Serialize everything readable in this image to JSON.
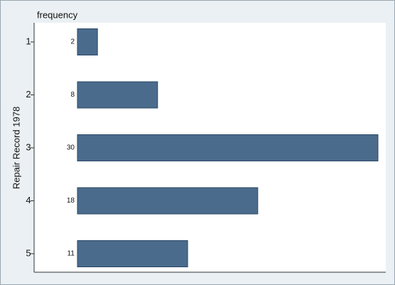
{
  "chart_data": {
    "type": "hbar",
    "title": "frequency",
    "y_label": "Repair Record 1978",
    "categories": [
      "1",
      "2",
      "3",
      "4",
      "5"
    ],
    "values": [
      2,
      8,
      30,
      18,
      11
    ],
    "color": "#4a6b8c",
    "xlim": [
      0,
      30
    ]
  }
}
